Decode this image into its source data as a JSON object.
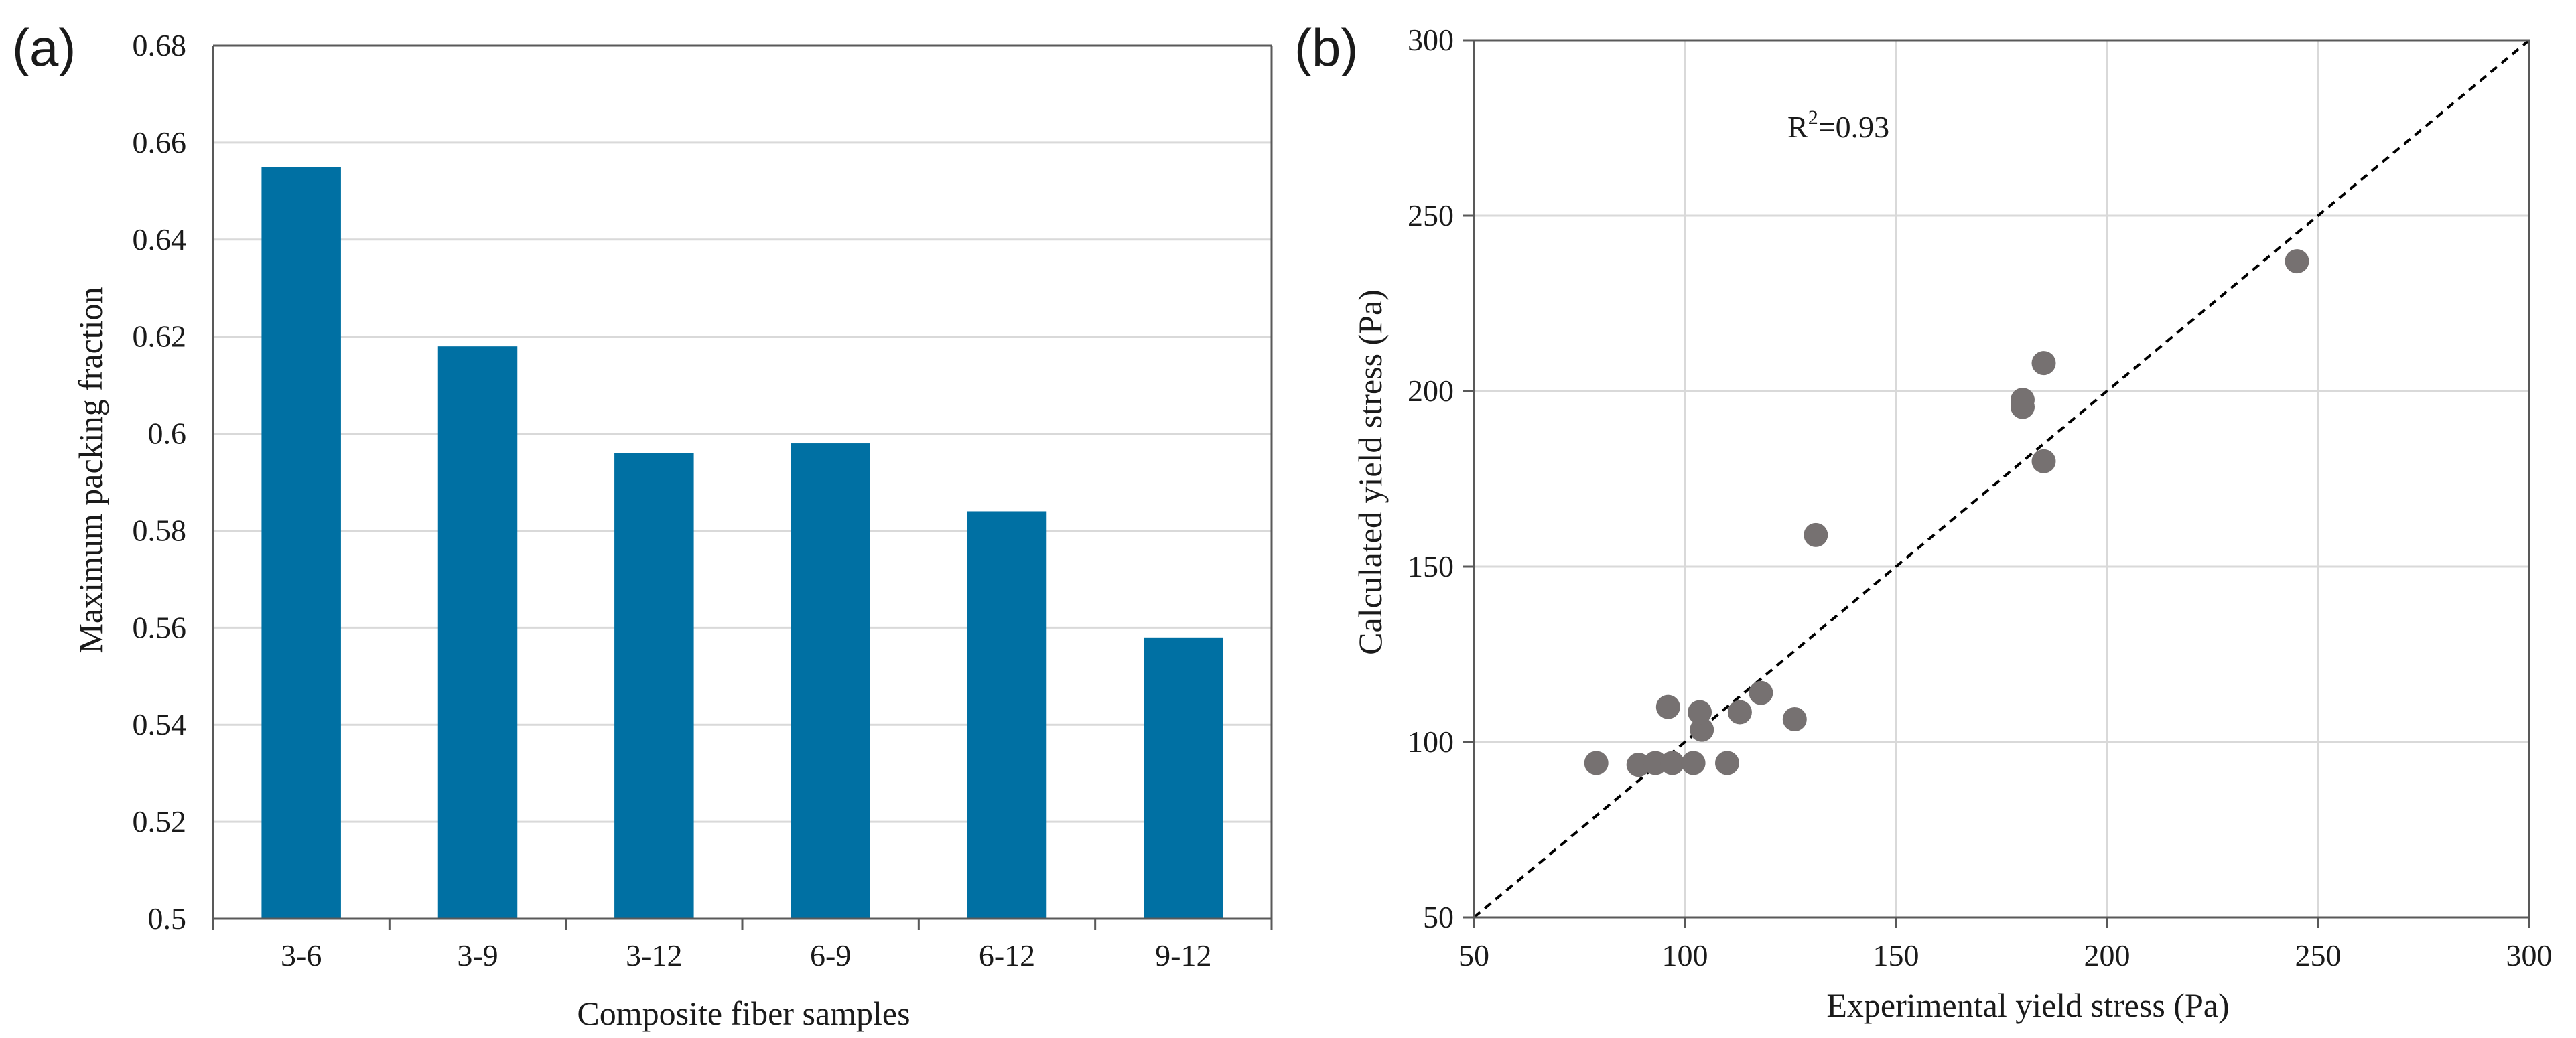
{
  "chart_data": [
    {
      "panel_label": "(a)",
      "type": "bar",
      "categories": [
        "3-6",
        "3-9",
        "3-12",
        "6-9",
        "6-12",
        "9-12"
      ],
      "values": [
        0.655,
        0.618,
        0.596,
        0.598,
        0.584,
        0.558
      ],
      "title": "",
      "xlabel": "Composite fiber samples",
      "ylabel": "Maximum packing fraction",
      "ylim": [
        0.5,
        0.68
      ],
      "yticks": [
        "0.5",
        "0.52",
        "0.54",
        "0.56",
        "0.58",
        "0.6",
        "0.62",
        "0.64",
        "0.66",
        "0.68"
      ],
      "grid": "horizontal",
      "colors": {
        "bar": "#0070a3",
        "grid": "#d9d9d9",
        "axis": "#595959"
      }
    },
    {
      "panel_label": "(b)",
      "type": "scatter",
      "title": "",
      "xlabel": "Experimental yield stress (Pa)",
      "ylabel": "Calculated yield stress (Pa)",
      "xlim": [
        50,
        300
      ],
      "ylim": [
        50,
        300
      ],
      "xticks": [
        "50",
        "100",
        "150",
        "200",
        "250",
        "300"
      ],
      "yticks": [
        "50",
        "100",
        "150",
        "200",
        "250",
        "300"
      ],
      "grid": "both",
      "annotation": {
        "base": "R",
        "sup": "2",
        "rest": "=0.93"
      },
      "reference_line": {
        "style": "dashed",
        "from": [
          50,
          50
        ],
        "to": [
          300,
          300
        ]
      },
      "points": [
        {
          "x": 79,
          "y": 94
        },
        {
          "x": 89,
          "y": 93.5
        },
        {
          "x": 93,
          "y": 94
        },
        {
          "x": 97,
          "y": 94
        },
        {
          "x": 96,
          "y": 110
        },
        {
          "x": 102,
          "y": 94
        },
        {
          "x": 104,
          "y": 103.5
        },
        {
          "x": 103.5,
          "y": 108.5
        },
        {
          "x": 110,
          "y": 94
        },
        {
          "x": 113,
          "y": 108.5
        },
        {
          "x": 118,
          "y": 114
        },
        {
          "x": 126,
          "y": 106.5
        },
        {
          "x": 131,
          "y": 159
        },
        {
          "x": 180,
          "y": 195.5
        },
        {
          "x": 180,
          "y": 197.5
        },
        {
          "x": 185,
          "y": 208
        },
        {
          "x": 185,
          "y": 180
        },
        {
          "x": 245,
          "y": 237
        }
      ],
      "colors": {
        "marker": "#767171",
        "grid": "#d9d9d9",
        "axis": "#595959",
        "line": "#000000"
      }
    }
  ]
}
